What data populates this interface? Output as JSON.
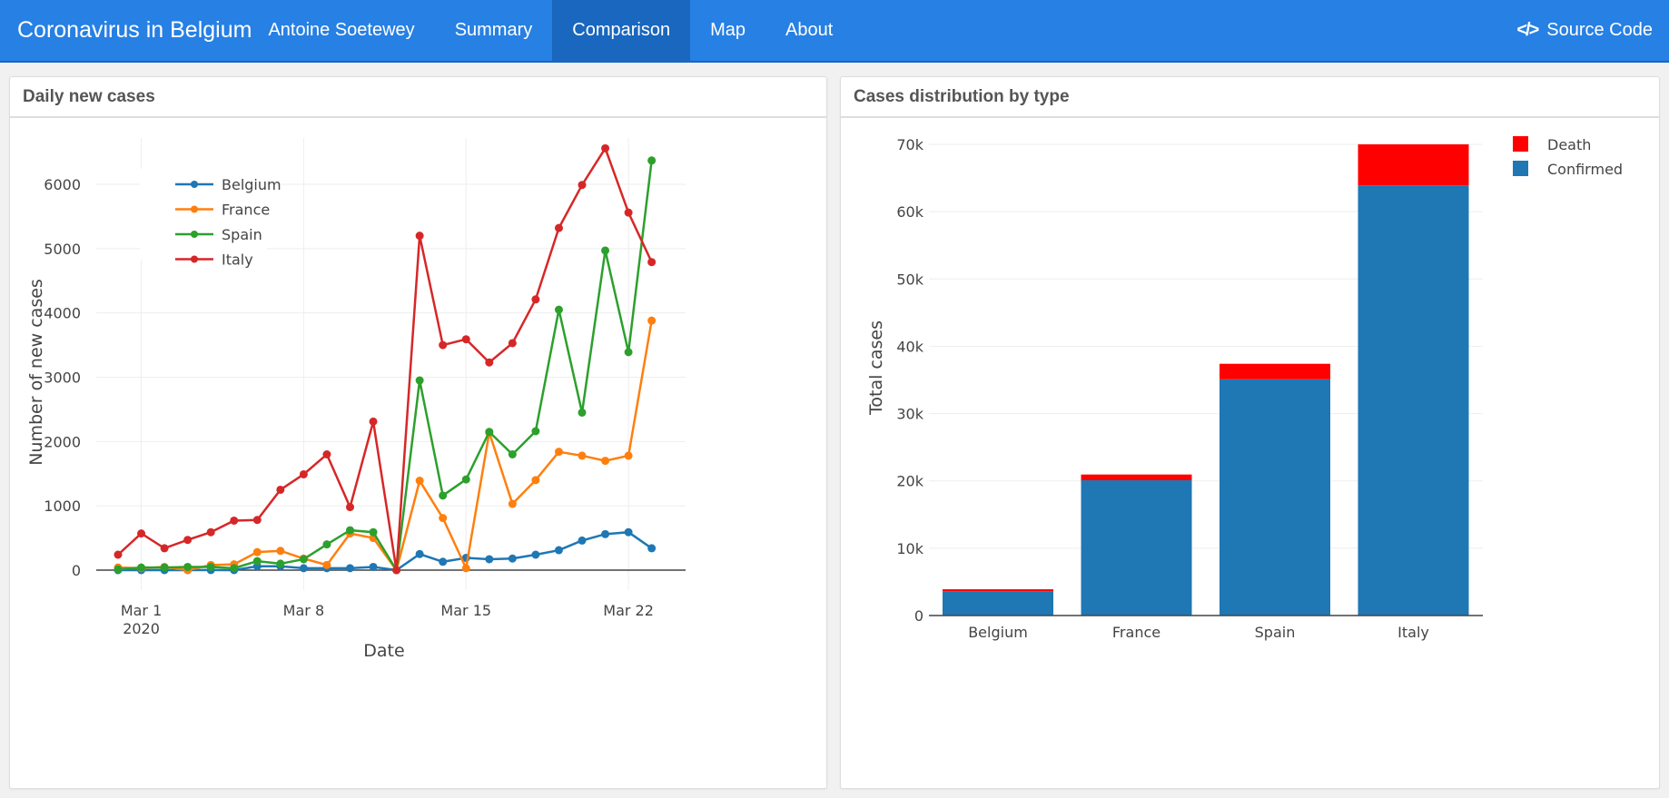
{
  "navbar": {
    "brand": "Coronavirus in Belgium",
    "author": "Antoine Soetewey",
    "items": [
      {
        "label": "Summary",
        "active": false
      },
      {
        "label": "Comparison",
        "active": true
      },
      {
        "label": "Map",
        "active": false
      },
      {
        "label": "About",
        "active": false
      }
    ],
    "source_code": {
      "icon": "code-icon",
      "label": "Source Code"
    },
    "colors": {
      "bar": "#2780e3",
      "active": "#1967be"
    }
  },
  "panels": {
    "left_title": "Daily new cases",
    "right_title": "Cases distribution by type"
  },
  "chart_data": [
    {
      "type": "line",
      "title": "Daily new cases",
      "xlabel": "Date",
      "ylabel": "Number of new cases",
      "x_start": "2020-02-29",
      "x": [
        "Feb 29",
        "Mar 1",
        "Mar 2",
        "Mar 3",
        "Mar 4",
        "Mar 5",
        "Mar 6",
        "Mar 7",
        "Mar 8",
        "Mar 9",
        "Mar 10",
        "Mar 11",
        "Mar 12",
        "Mar 13",
        "Mar 14",
        "Mar 15",
        "Mar 16",
        "Mar 17",
        "Mar 18",
        "Mar 19",
        "Mar 20",
        "Mar 21",
        "Mar 22",
        "Mar 23"
      ],
      "xticks": [
        {
          "label": "Mar 1",
          "sub": "2020",
          "index": 1
        },
        {
          "label": "Mar 8",
          "sub": "",
          "index": 8
        },
        {
          "label": "Mar 15",
          "sub": "",
          "index": 15
        },
        {
          "label": "Mar 22",
          "sub": "",
          "index": 22
        }
      ],
      "yticks": [
        0,
        1000,
        2000,
        3000,
        4000,
        5000,
        6000
      ],
      "ylim": [
        -700,
        6900
      ],
      "legend_position": "top-left",
      "grid": true,
      "series": [
        {
          "name": "Belgium",
          "color": "#1f77b4",
          "values": [
            0,
            0,
            0,
            0,
            1,
            0,
            60,
            60,
            30,
            30,
            30,
            50,
            0,
            250,
            130,
            190,
            170,
            180,
            240,
            310,
            460,
            560,
            590,
            340
          ]
        },
        {
          "name": "France",
          "color": "#ff7f0e",
          "values": [
            40,
            30,
            50,
            0,
            80,
            90,
            280,
            300,
            180,
            80,
            570,
            500,
            0,
            1390,
            810,
            30,
            2140,
            1030,
            1400,
            1840,
            1780,
            1700,
            1780,
            3880
          ]
        },
        {
          "name": "Spain",
          "color": "#2ca02c",
          "values": [
            10,
            40,
            40,
            50,
            50,
            30,
            140,
            100,
            170,
            400,
            620,
            590,
            0,
            2950,
            1160,
            1410,
            2150,
            1800,
            2160,
            4050,
            2450,
            4970,
            3390,
            6370
          ]
        },
        {
          "name": "Italy",
          "color": "#d62728",
          "values": [
            240,
            570,
            340,
            470,
            590,
            770,
            780,
            1250,
            1490,
            1800,
            980,
            2310,
            0,
            5200,
            3500,
            3590,
            3230,
            3530,
            4210,
            5320,
            5990,
            6560,
            5560,
            4790
          ]
        }
      ]
    },
    {
      "type": "bar",
      "stacked": true,
      "title": "Cases distribution by type",
      "xlabel": "",
      "ylabel": "Total cases",
      "categories": [
        "Belgium",
        "France",
        "Spain",
        "Italy"
      ],
      "yticks": [
        0,
        10000,
        20000,
        30000,
        40000,
        50000,
        60000,
        70000
      ],
      "ytick_labels": [
        "0",
        "10k",
        "20k",
        "30k",
        "40k",
        "50k",
        "60k",
        "70k"
      ],
      "ylim": [
        0,
        73500
      ],
      "legend_position": "top-right",
      "grid": true,
      "series": [
        {
          "name": "Confirmed",
          "color": "#1f77b4",
          "values": [
            3600,
            20100,
            35100,
            63900
          ]
        },
        {
          "name": "Death",
          "color": "#ff0000",
          "values": [
            300,
            850,
            2300,
            6100
          ]
        }
      ],
      "legend_order": [
        "Death",
        "Confirmed"
      ]
    }
  ]
}
